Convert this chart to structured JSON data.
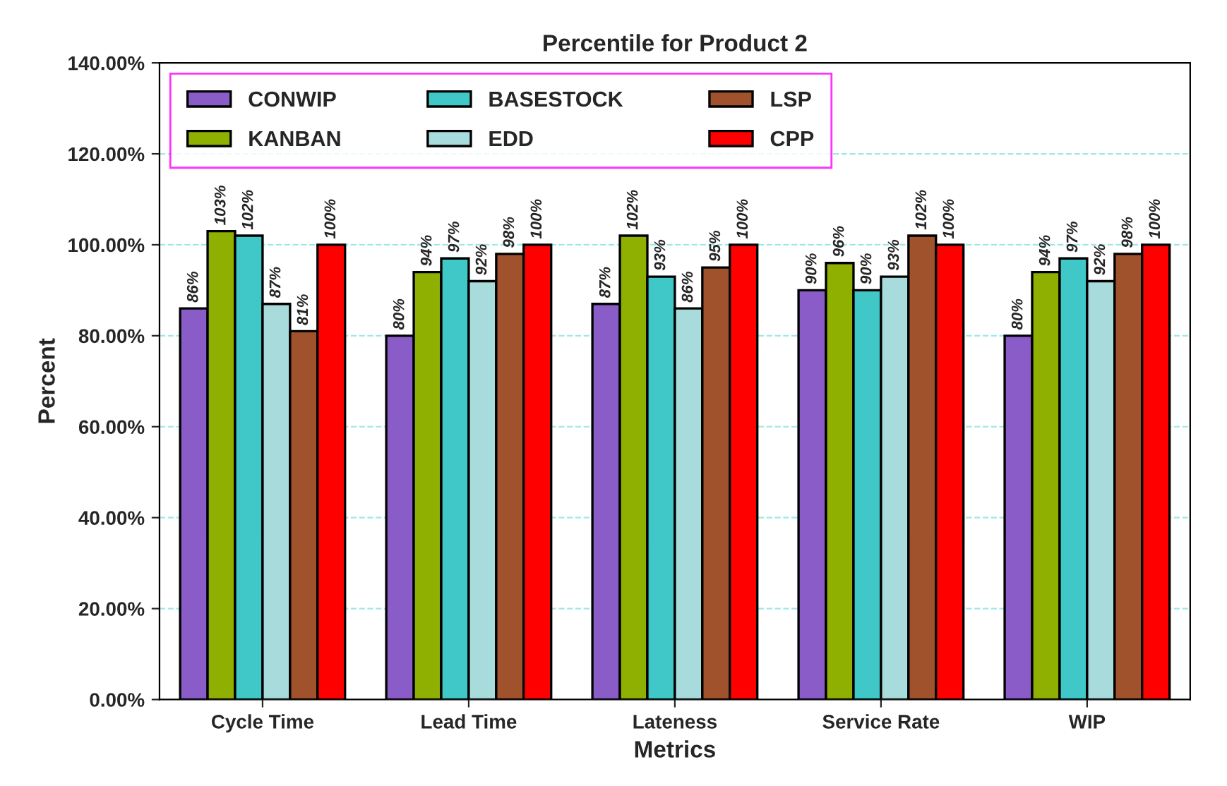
{
  "chart_data": {
    "type": "bar",
    "title": "Percentile for Product 2",
    "xlabel": "Metrics",
    "ylabel": "Percent",
    "categories": [
      "Cycle Time",
      "Lead Time",
      "Lateness",
      "Service Rate",
      "WIP"
    ],
    "series": [
      {
        "name": "CONWIP",
        "color": "#8a5cc8",
        "values": [
          86,
          80,
          87,
          90,
          80
        ],
        "value_labels": [
          "86%",
          "80%",
          "87%",
          "90%",
          "80%"
        ]
      },
      {
        "name": "KANBAN",
        "color": "#8fb000",
        "values": [
          103,
          94,
          102,
          96,
          94
        ],
        "value_labels": [
          "103%",
          "94%",
          "102%",
          "96%",
          "94%"
        ]
      },
      {
        "name": "BASESTOCK",
        "color": "#40c8c8",
        "values": [
          102,
          97,
          93,
          90,
          97
        ],
        "value_labels": [
          "102%",
          "97%",
          "93%",
          "90%",
          "97%"
        ]
      },
      {
        "name": "EDD",
        "color": "#a8dcdc",
        "values": [
          87,
          92,
          86,
          93,
          92
        ],
        "value_labels": [
          "87%",
          "92%",
          "86%",
          "93%",
          "92%"
        ]
      },
      {
        "name": "LSP",
        "color": "#a0522d",
        "values": [
          81,
          98,
          95,
          102,
          98
        ],
        "value_labels": [
          "81%",
          "98%",
          "95%",
          "102%",
          "98%"
        ]
      },
      {
        "name": "CPP",
        "color": "#ff0000",
        "values": [
          100,
          100,
          100,
          100,
          100
        ],
        "value_labels": [
          "100%",
          "100%",
          "100%",
          "100%",
          "100%"
        ]
      }
    ],
    "ylim": [
      0,
      140
    ],
    "yticks": [
      {
        "value": 0,
        "label": "0.00%"
      },
      {
        "value": 20,
        "label": "20.00%"
      },
      {
        "value": 40,
        "label": "40.00%"
      },
      {
        "value": 60,
        "label": "60.00%"
      },
      {
        "value": 80,
        "label": "80.00%"
      },
      {
        "value": 100,
        "label": "100.00%"
      },
      {
        "value": 120,
        "label": "120.00%"
      },
      {
        "value": 140,
        "label": "140.00%"
      }
    ],
    "grid": "y",
    "legend": "top left"
  }
}
